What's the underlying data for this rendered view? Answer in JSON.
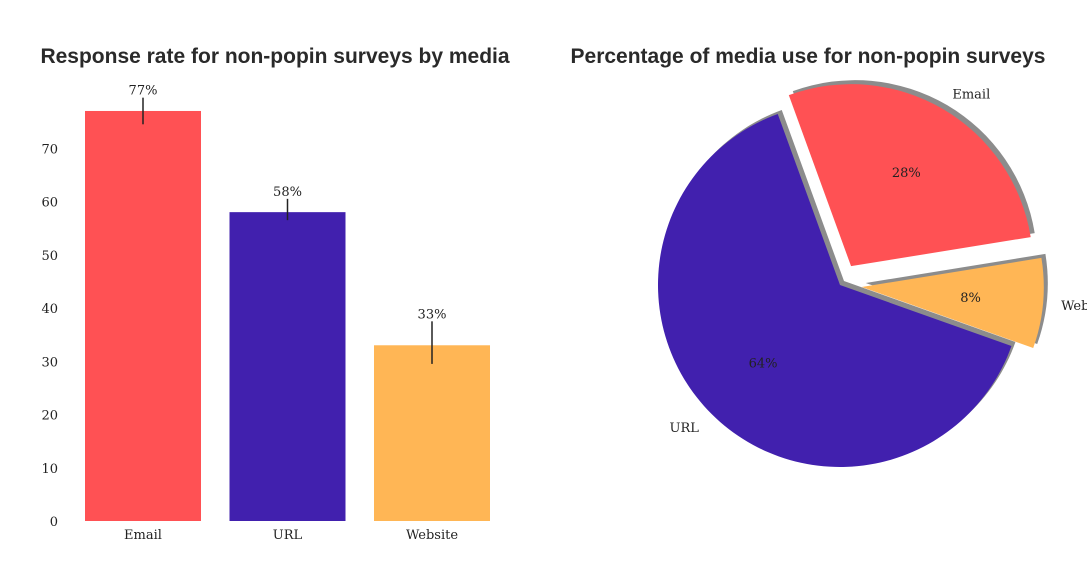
{
  "chart_data": [
    {
      "type": "bar",
      "title": "Response rate for non-popin surveys by media",
      "categories": [
        "Email",
        "URL",
        "Website"
      ],
      "values": [
        77,
        58,
        33
      ],
      "value_labels": [
        "77%",
        "58%",
        "33%"
      ],
      "error_bars": [
        [
          74.5,
          79.5
        ],
        [
          56.5,
          60.5
        ],
        [
          29.5,
          37.5
        ]
      ],
      "colors": [
        "#ff5154",
        "#4120ae",
        "#ffb655"
      ],
      "ylim": [
        0,
        80
      ],
      "yticks": [
        0,
        10,
        20,
        30,
        40,
        50,
        60,
        70
      ],
      "grid": false
    },
    {
      "type": "pie",
      "title": "Percentage of media use for non-popin surveys",
      "labels": [
        "URL",
        "Website",
        "Email"
      ],
      "values": [
        64,
        8,
        28
      ],
      "value_labels": [
        "64%",
        "8%",
        "28%"
      ],
      "colors": [
        "#4120ae",
        "#ffb655",
        "#ff5154"
      ],
      "exploded": [
        false,
        true,
        true
      ],
      "shadow": true
    }
  ]
}
